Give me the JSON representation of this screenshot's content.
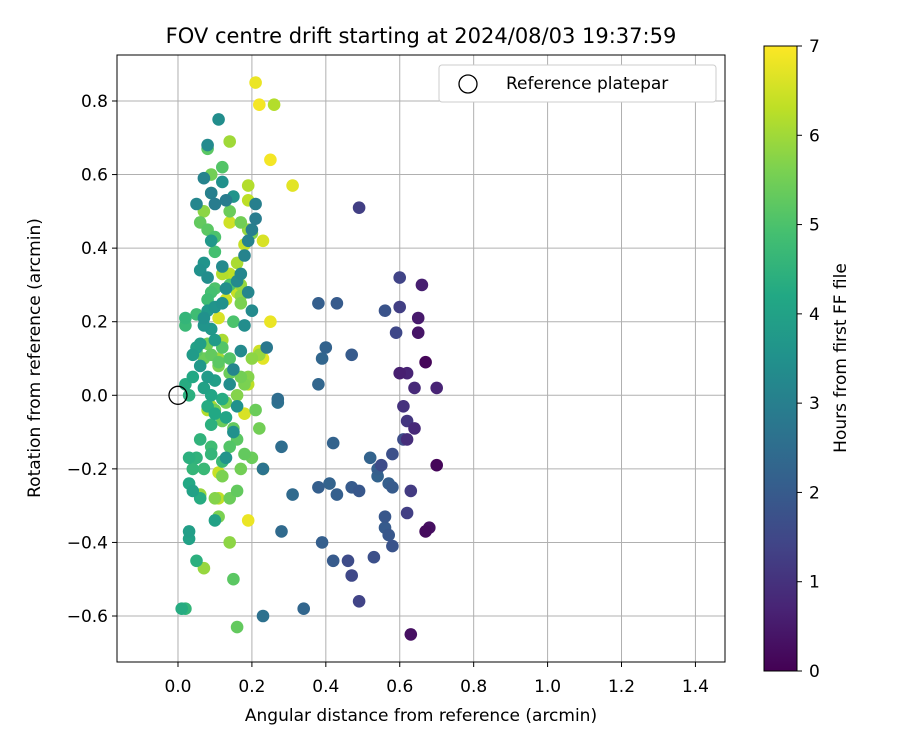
{
  "chart_data": {
    "type": "scatter",
    "title": "FOV centre drift starting at 2024/08/03 19:37:59",
    "xlabel": "Angular distance from reference (arcmin)",
    "ylabel": "Rotation from reference (arcmin)",
    "xlim": [
      -0.165,
      1.48
    ],
    "ylim": [
      -0.725,
      0.925
    ],
    "xticks": [
      0.0,
      0.2,
      0.4,
      0.6,
      0.8,
      1.0,
      1.2,
      1.4
    ],
    "xtick_labels": [
      "0.0",
      "0.2",
      "0.4",
      "0.6",
      "0.8",
      "1.0",
      "1.2",
      "1.4"
    ],
    "yticks": [
      -0.6,
      -0.4,
      -0.2,
      0.0,
      0.2,
      0.4,
      0.6,
      0.8
    ],
    "ytick_labels": [
      "−0.6",
      "−0.4",
      "−0.2",
      "0.0",
      "0.2",
      "0.4",
      "0.6",
      "0.8"
    ],
    "grid": true,
    "legend": {
      "placement": "top-right",
      "entries": [
        "Reference platepar"
      ]
    },
    "reference_point": {
      "x": 0.0,
      "y": 0.0
    },
    "colorbar": {
      "label": "Hours from first FF file",
      "range": [
        0,
        7
      ],
      "ticks": [
        0,
        1,
        2,
        3,
        4,
        5,
        6,
        7
      ],
      "tick_labels": [
        "0",
        "1",
        "2",
        "3",
        "4",
        "5",
        "6",
        "7"
      ],
      "colormap": "viridis"
    },
    "points": [
      [
        0.67,
        0.09,
        0.1
      ],
      [
        0.7,
        -0.19,
        0.1
      ],
      [
        0.63,
        -0.65,
        0.3
      ],
      [
        0.67,
        -0.37,
        0.2
      ],
      [
        0.68,
        -0.36,
        0.3
      ],
      [
        0.65,
        0.17,
        0.4
      ],
      [
        0.65,
        0.21,
        0.5
      ],
      [
        0.66,
        0.3,
        0.6
      ],
      [
        0.6,
        0.06,
        0.6
      ],
      [
        0.62,
        0.06,
        0.7
      ],
      [
        0.64,
        0.02,
        0.8
      ],
      [
        0.7,
        0.02,
        0.7
      ],
      [
        0.64,
        -0.09,
        0.8
      ],
      [
        0.62,
        -0.12,
        0.9
      ],
      [
        0.61,
        -0.03,
        1.0
      ],
      [
        0.62,
        -0.07,
        1.1
      ],
      [
        0.63,
        -0.26,
        1.2
      ],
      [
        0.62,
        -0.32,
        1.3
      ],
      [
        0.6,
        0.24,
        1.3
      ],
      [
        0.6,
        0.32,
        1.4
      ],
      [
        0.59,
        0.17,
        1.5
      ],
      [
        0.61,
        -0.12,
        1.6
      ],
      [
        0.58,
        -0.16,
        1.7
      ],
      [
        0.55,
        -0.19,
        1.6
      ],
      [
        0.56,
        0.23,
        1.8
      ],
      [
        0.49,
        0.51,
        1.3
      ],
      [
        0.49,
        -0.56,
        1.4
      ],
      [
        0.47,
        -0.49,
        1.5
      ],
      [
        0.46,
        -0.45,
        1.6
      ],
      [
        0.53,
        -0.44,
        1.7
      ],
      [
        0.58,
        -0.41,
        1.8
      ],
      [
        0.57,
        -0.38,
        1.9
      ],
      [
        0.56,
        -0.36,
        2.0
      ],
      [
        0.56,
        -0.33,
        1.9
      ],
      [
        0.58,
        -0.25,
        2.0
      ],
      [
        0.57,
        -0.24,
        2.1
      ],
      [
        0.54,
        -0.22,
        2.2
      ],
      [
        0.54,
        -0.2,
        2.1
      ],
      [
        0.52,
        -0.17,
        2.2
      ],
      [
        0.49,
        -0.26,
        1.9
      ],
      [
        0.47,
        -0.25,
        2.0
      ],
      [
        0.43,
        -0.27,
        2.1
      ],
      [
        0.41,
        -0.24,
        2.2
      ],
      [
        0.38,
        -0.25,
        2.1
      ],
      [
        0.42,
        -0.45,
        2.0
      ],
      [
        0.39,
        -0.4,
        2.1
      ],
      [
        0.42,
        -0.13,
        2.2
      ],
      [
        0.47,
        0.11,
        2.0
      ],
      [
        0.43,
        0.25,
        2.0
      ],
      [
        0.38,
        0.25,
        2.1
      ],
      [
        0.4,
        0.13,
        2.2
      ],
      [
        0.39,
        0.1,
        2.3
      ],
      [
        0.38,
        0.03,
        2.3
      ],
      [
        0.34,
        -0.58,
        2.3
      ],
      [
        0.31,
        -0.27,
        2.4
      ],
      [
        0.28,
        -0.37,
        2.4
      ],
      [
        0.28,
        -0.14,
        2.5
      ],
      [
        0.27,
        -0.01,
        2.5
      ],
      [
        0.27,
        -0.02,
        2.6
      ],
      [
        0.23,
        -0.6,
        2.6
      ],
      [
        0.23,
        -0.2,
        2.7
      ],
      [
        0.24,
        0.13,
        2.8
      ],
      [
        0.21,
        0.48,
        2.9
      ],
      [
        0.21,
        0.52,
        3.0
      ],
      [
        0.2,
        0.45,
        3.0
      ],
      [
        0.19,
        0.42,
        3.1
      ],
      [
        0.18,
        0.38,
        3.1
      ],
      [
        0.17,
        0.33,
        3.2
      ],
      [
        0.16,
        0.31,
        3.3
      ],
      [
        0.19,
        0.28,
        3.2
      ],
      [
        0.2,
        0.23,
        3.3
      ],
      [
        0.18,
        0.19,
        3.4
      ],
      [
        0.17,
        0.12,
        3.3
      ],
      [
        0.15,
        0.07,
        3.2
      ],
      [
        0.14,
        0.03,
        3.4
      ],
      [
        0.16,
        -0.03,
        3.5
      ],
      [
        0.15,
        -0.1,
        3.5
      ],
      [
        0.13,
        -0.17,
        3.6
      ],
      [
        0.13,
        0.53,
        2.9
      ],
      [
        0.1,
        0.52,
        2.9
      ],
      [
        0.09,
        0.55,
        3.0
      ],
      [
        0.07,
        0.59,
        3.1
      ],
      [
        0.05,
        0.52,
        3.2
      ],
      [
        0.08,
        0.68,
        3.3
      ],
      [
        0.11,
        0.75,
        3.4
      ],
      [
        0.12,
        0.58,
        3.5
      ],
      [
        0.15,
        0.54,
        3.6
      ],
      [
        0.09,
        0.42,
        3.7
      ],
      [
        0.07,
        0.36,
        3.6
      ],
      [
        0.06,
        0.34,
        3.5
      ],
      [
        0.08,
        0.32,
        3.4
      ],
      [
        0.12,
        0.35,
        3.3
      ],
      [
        0.13,
        0.29,
        3.4
      ],
      [
        0.12,
        0.25,
        3.5
      ],
      [
        0.1,
        0.24,
        3.6
      ],
      [
        0.08,
        0.23,
        3.7
      ],
      [
        0.07,
        0.21,
        3.5
      ],
      [
        0.07,
        0.19,
        3.6
      ],
      [
        0.09,
        0.18,
        3.7
      ],
      [
        0.1,
        0.15,
        3.8
      ],
      [
        0.06,
        0.14,
        3.9
      ],
      [
        0.05,
        0.13,
        4.0
      ],
      [
        0.04,
        0.11,
        3.8
      ],
      [
        0.06,
        0.08,
        3.7
      ],
      [
        0.08,
        0.05,
        3.8
      ],
      [
        0.1,
        0.04,
        3.9
      ],
      [
        0.07,
        0.02,
        4.0
      ],
      [
        0.09,
        0.0,
        4.1
      ],
      [
        0.04,
        0.05,
        4.2
      ],
      [
        0.02,
        0.03,
        4.3
      ],
      [
        0.03,
        0.0,
        4.4
      ],
      [
        0.08,
        -0.03,
        4.3
      ],
      [
        0.1,
        -0.05,
        4.2
      ],
      [
        0.13,
        -0.06,
        4.1
      ],
      [
        0.12,
        -0.01,
        4.3
      ],
      [
        0.09,
        -0.08,
        4.4
      ],
      [
        0.06,
        -0.12,
        4.5
      ],
      [
        0.09,
        -0.16,
        4.6
      ],
      [
        0.12,
        -0.18,
        4.7
      ],
      [
        0.05,
        -0.17,
        4.5
      ],
      [
        0.03,
        -0.17,
        4.4
      ],
      [
        0.04,
        -0.2,
        4.6
      ],
      [
        0.07,
        -0.2,
        4.7
      ],
      [
        0.09,
        -0.14,
        4.8
      ],
      [
        0.04,
        -0.26,
        4.0
      ],
      [
        0.03,
        -0.24,
        4.2
      ],
      [
        0.06,
        -0.28,
        4.3
      ],
      [
        0.1,
        -0.34,
        4.0
      ],
      [
        0.03,
        -0.37,
        3.9
      ],
      [
        0.03,
        -0.39,
        4.0
      ],
      [
        0.05,
        -0.45,
        4.4
      ],
      [
        0.01,
        -0.58,
        4.3
      ],
      [
        0.02,
        -0.58,
        4.6
      ],
      [
        0.02,
        0.21,
        4.6
      ],
      [
        0.02,
        0.19,
        4.7
      ],
      [
        0.05,
        0.22,
        4.8
      ],
      [
        0.08,
        0.26,
        4.8
      ],
      [
        0.09,
        0.28,
        4.9
      ],
      [
        0.1,
        0.29,
        5.0
      ],
      [
        0.14,
        0.3,
        5.0
      ],
      [
        0.15,
        0.2,
        5.0
      ],
      [
        0.12,
        0.13,
        5.1
      ],
      [
        0.14,
        0.1,
        5.1
      ],
      [
        0.11,
        0.09,
        5.2
      ],
      [
        0.09,
        0.11,
        5.3
      ],
      [
        0.07,
        0.1,
        5.4
      ],
      [
        0.05,
        0.12,
        5.2
      ],
      [
        0.08,
        0.14,
        5.5
      ],
      [
        0.11,
        0.08,
        5.6
      ],
      [
        0.14,
        0.06,
        5.4
      ],
      [
        0.17,
        0.05,
        5.5
      ],
      [
        0.18,
        0.03,
        5.6
      ],
      [
        0.16,
        0.0,
        5.7
      ],
      [
        0.13,
        -0.02,
        5.6
      ],
      [
        0.1,
        -0.04,
        5.5
      ],
      [
        0.12,
        -0.07,
        5.4
      ],
      [
        0.15,
        -0.09,
        5.3
      ],
      [
        0.16,
        -0.12,
        5.2
      ],
      [
        0.14,
        -0.14,
        5.1
      ],
      [
        0.18,
        -0.16,
        5.3
      ],
      [
        0.2,
        -0.17,
        5.4
      ],
      [
        0.17,
        -0.2,
        5.5
      ],
      [
        0.12,
        -0.22,
        5.6
      ],
      [
        0.1,
        -0.28,
        5.7
      ],
      [
        0.14,
        -0.28,
        5.4
      ],
      [
        0.16,
        -0.26,
        5.3
      ],
      [
        0.11,
        -0.33,
        5.6
      ],
      [
        0.14,
        -0.4,
        5.8
      ],
      [
        0.07,
        -0.47,
        5.9
      ],
      [
        0.15,
        -0.5,
        5.2
      ],
      [
        0.16,
        -0.63,
        5.3
      ],
      [
        0.22,
        -0.09,
        5.5
      ],
      [
        0.21,
        -0.04,
        5.4
      ],
      [
        0.19,
        0.05,
        5.7
      ],
      [
        0.2,
        0.1,
        5.8
      ],
      [
        0.22,
        0.11,
        5.9
      ],
      [
        0.17,
        0.25,
        5.6
      ],
      [
        0.17,
        0.27,
        5.8
      ],
      [
        0.17,
        0.3,
        5.9
      ],
      [
        0.17,
        0.33,
        6.0
      ],
      [
        0.16,
        0.36,
        6.1
      ],
      [
        0.2,
        0.44,
        5.7
      ],
      [
        0.19,
        0.45,
        5.9
      ],
      [
        0.17,
        0.47,
        5.5
      ],
      [
        0.14,
        0.5,
        5.4
      ],
      [
        0.09,
        0.6,
        5.5
      ],
      [
        0.09,
        0.55,
        5.6
      ],
      [
        0.07,
        0.5,
        5.8
      ],
      [
        0.06,
        0.47,
        5.3
      ],
      [
        0.12,
        0.62,
        5.1
      ],
      [
        0.08,
        0.67,
        5.2
      ],
      [
        0.14,
        0.69,
        6.0
      ],
      [
        0.1,
        0.39,
        4.9
      ],
      [
        0.1,
        0.43,
        5.0
      ],
      [
        0.08,
        0.45,
        5.2
      ],
      [
        0.12,
        0.33,
        6.2
      ],
      [
        0.14,
        0.33,
        6.3
      ],
      [
        0.16,
        0.28,
        6.4
      ],
      [
        0.13,
        0.26,
        6.5
      ],
      [
        0.11,
        0.21,
        6.6
      ],
      [
        0.19,
        0.53,
        6.3
      ],
      [
        0.19,
        0.57,
        6.2
      ],
      [
        0.14,
        0.47,
        6.5
      ],
      [
        0.18,
        0.41,
        6.4
      ],
      [
        0.23,
        0.42,
        6.6
      ],
      [
        0.21,
        0.85,
        6.8
      ],
      [
        0.22,
        0.79,
        6.9
      ],
      [
        0.26,
        0.79,
        6.2
      ],
      [
        0.25,
        0.64,
        6.9
      ],
      [
        0.31,
        0.57,
        6.7
      ],
      [
        0.25,
        0.2,
        6.8
      ],
      [
        0.23,
        0.1,
        6.7
      ],
      [
        0.22,
        0.12,
        6.5
      ],
      [
        0.19,
        0.03,
        6.3
      ],
      [
        0.18,
        -0.05,
        6.6
      ],
      [
        0.19,
        -0.34,
        6.8
      ],
      [
        0.23,
        -0.2,
        6.5
      ],
      [
        0.12,
        0.15,
        6.1
      ],
      [
        0.11,
        0.1,
        6.0
      ],
      [
        0.09,
        -0.03,
        6.1
      ],
      [
        0.08,
        -0.04,
        6.2
      ],
      [
        0.11,
        -0.21,
        6.4
      ],
      [
        0.11,
        -0.28,
        6.3
      ],
      [
        0.06,
        -0.27,
        5.9
      ]
    ]
  }
}
